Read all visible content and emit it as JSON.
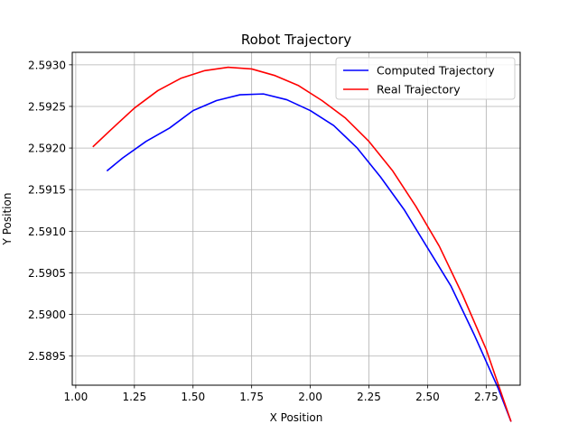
{
  "chart_data": {
    "type": "line",
    "title": "Robot Trajectory",
    "xlabel": "X Position",
    "ylabel": "Y Position",
    "xlim": [
      0.985,
      2.895
    ],
    "ylim": [
      2.58915,
      2.59315
    ],
    "xticks": [
      1.0,
      1.25,
      1.5,
      1.75,
      2.0,
      2.25,
      2.5,
      2.75
    ],
    "xtick_labels": [
      "1.00",
      "1.25",
      "1.50",
      "1.75",
      "2.00",
      "2.25",
      "2.50",
      "2.75"
    ],
    "yticks": [
      2.5895,
      2.59,
      2.5905,
      2.591,
      2.5915,
      2.592,
      2.5925,
      2.593
    ],
    "ytick_labels": [
      "2.5895",
      "2.5900",
      "2.5905",
      "2.5910",
      "2.5915",
      "2.5920",
      "2.5925",
      "2.5930"
    ],
    "grid": true,
    "legend_position": "upper right",
    "series": [
      {
        "name": "Computed Trajectory",
        "color": "#0000ff",
        "x": [
          1.135,
          1.2,
          1.3,
          1.4,
          1.5,
          1.6,
          1.7,
          1.8,
          1.9,
          2.0,
          2.1,
          2.2,
          2.3,
          2.4,
          2.5,
          2.6,
          2.7,
          2.8,
          2.855
        ],
        "y": [
          2.59173,
          2.59188,
          2.59208,
          2.59224,
          2.59245,
          2.59257,
          2.59264,
          2.59265,
          2.59258,
          2.59245,
          2.59227,
          2.592,
          2.59165,
          2.59126,
          2.5908,
          2.59034,
          2.58975,
          2.58912,
          2.58872
        ]
      },
      {
        "name": "Real Trajectory",
        "color": "#ff0000",
        "x": [
          1.075,
          1.15,
          1.25,
          1.35,
          1.45,
          1.55,
          1.65,
          1.75,
          1.85,
          1.95,
          2.05,
          2.15,
          2.25,
          2.35,
          2.45,
          2.55,
          2.65,
          2.75,
          2.855
        ],
        "y": [
          2.59202,
          2.59222,
          2.59248,
          2.59269,
          2.59284,
          2.59293,
          2.59297,
          2.59295,
          2.59287,
          2.59275,
          2.59257,
          2.59236,
          2.59208,
          2.59173,
          2.5913,
          2.59082,
          2.59023,
          2.58958,
          2.58872
        ]
      }
    ]
  }
}
